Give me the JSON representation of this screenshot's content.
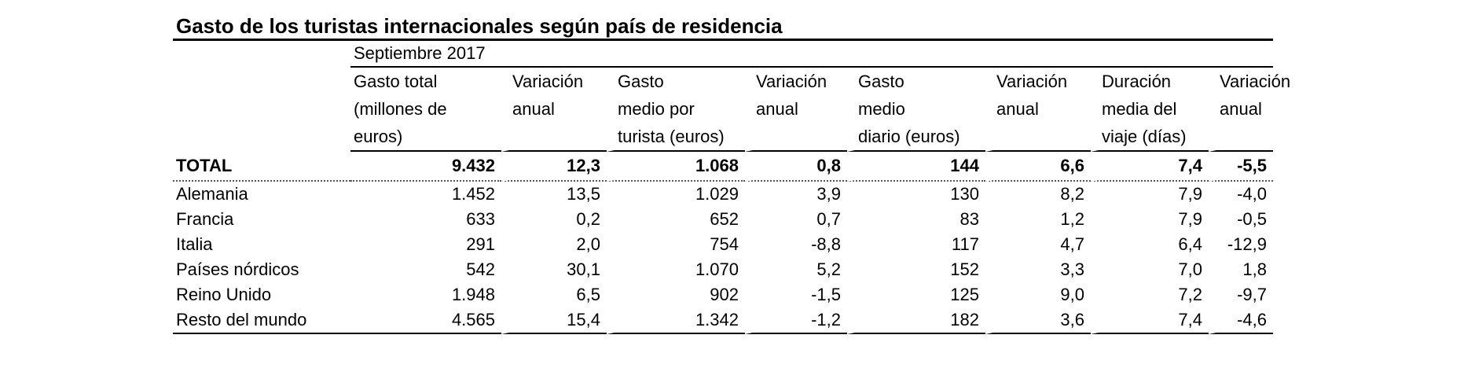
{
  "title": "Gasto de los turistas internacionales según país de residencia",
  "period": "Septiembre  2017",
  "headers": [
    [
      "Gasto total",
      "(millones de",
      "euros)"
    ],
    [
      "Variación",
      "anual"
    ],
    [
      "Gasto",
      "medio por",
      "turista (euros)"
    ],
    [
      "Variación",
      "anual"
    ],
    [
      "Gasto",
      "medio",
      "diario (euros)"
    ],
    [
      "Variación",
      "anual"
    ],
    [
      "Duración",
      "media del",
      "viaje (días)"
    ],
    [
      "Variación",
      "anual"
    ]
  ],
  "total": {
    "label": "TOTAL",
    "values": [
      "9.432",
      "12,3",
      "1.068",
      "0,8",
      "144",
      "6,6",
      "7,4",
      "-5,5"
    ]
  },
  "rows": [
    {
      "label": "Alemania",
      "values": [
        "1.452",
        "13,5",
        "1.029",
        "3,9",
        "130",
        "8,2",
        "7,9",
        "-4,0"
      ]
    },
    {
      "label": "Francia",
      "values": [
        "633",
        "0,2",
        "652",
        "0,7",
        "83",
        "1,2",
        "7,9",
        "-0,5"
      ]
    },
    {
      "label": "Italia",
      "values": [
        "291",
        "2,0",
        "754",
        "-8,8",
        "117",
        "4,7",
        "6,4",
        "-12,9"
      ]
    },
    {
      "label": "Países nórdicos",
      "values": [
        "542",
        "30,1",
        "1.070",
        "5,2",
        "152",
        "3,3",
        "7,0",
        "1,8"
      ]
    },
    {
      "label": "Reino Unido",
      "values": [
        "1.948",
        "6,5",
        "902",
        "-1,5",
        "125",
        "9,0",
        "7,2",
        "-9,7"
      ]
    },
    {
      "label": "Resto del mundo",
      "values": [
        "4.565",
        "15,4",
        "1.342",
        "-1,2",
        "182",
        "3,6",
        "7,4",
        "-4,6"
      ]
    }
  ]
}
